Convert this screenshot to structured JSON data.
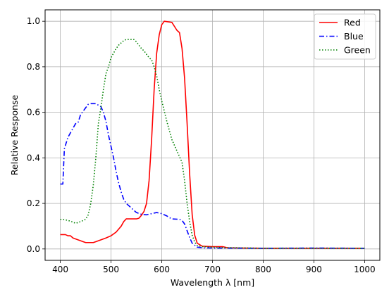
{
  "chart_data": {
    "type": "line",
    "title": "",
    "xlabel": "Wavelength λ [nm]",
    "ylabel": "Relative Response",
    "xlim": [
      370,
      1030
    ],
    "ylim": [
      -0.05,
      1.05
    ],
    "xticks": [
      400,
      500,
      600,
      700,
      800,
      900,
      1000
    ],
    "yticks": [
      0.0,
      0.2,
      0.4,
      0.6,
      0.8,
      1.0
    ],
    "xtick_labels": [
      "400",
      "500",
      "600",
      "700",
      "800",
      "900",
      "1000"
    ],
    "ytick_labels": [
      "0.0",
      "0.2",
      "0.4",
      "0.6",
      "0.8",
      "1.0"
    ],
    "grid": true,
    "legend_position": "top-right",
    "series": [
      {
        "name": "Red",
        "color": "#ff0000",
        "dash": "solid",
        "points": [
          [
            400,
            0.063
          ],
          [
            410,
            0.063
          ],
          [
            415,
            0.058
          ],
          [
            420,
            0.058
          ],
          [
            425,
            0.048
          ],
          [
            435,
            0.04
          ],
          [
            445,
            0.032
          ],
          [
            450,
            0.028
          ],
          [
            465,
            0.028
          ],
          [
            470,
            0.032
          ],
          [
            480,
            0.04
          ],
          [
            490,
            0.048
          ],
          [
            500,
            0.058
          ],
          [
            510,
            0.074
          ],
          [
            520,
            0.1
          ],
          [
            525,
            0.12
          ],
          [
            530,
            0.132
          ],
          [
            550,
            0.132
          ],
          [
            555,
            0.135
          ],
          [
            560,
            0.148
          ],
          [
            565,
            0.165
          ],
          [
            570,
            0.2
          ],
          [
            575,
            0.3
          ],
          [
            580,
            0.48
          ],
          [
            585,
            0.7
          ],
          [
            590,
            0.86
          ],
          [
            595,
            0.94
          ],
          [
            600,
            0.985
          ],
          [
            605,
            1.0
          ],
          [
            620,
            0.995
          ],
          [
            630,
            0.96
          ],
          [
            635,
            0.95
          ],
          [
            640,
            0.88
          ],
          [
            645,
            0.75
          ],
          [
            650,
            0.55
          ],
          [
            655,
            0.33
          ],
          [
            660,
            0.15
          ],
          [
            665,
            0.06
          ],
          [
            670,
            0.025
          ],
          [
            680,
            0.012
          ],
          [
            700,
            0.01
          ],
          [
            720,
            0.01
          ],
          [
            730,
            0.005
          ],
          [
            760,
            0.004
          ],
          [
            800,
            0.003
          ],
          [
            900,
            0.003
          ],
          [
            1000,
            0.003
          ]
        ]
      },
      {
        "name": "Blue",
        "color": "#0000ff",
        "dash": "dashdot",
        "points": [
          [
            400,
            0.285
          ],
          [
            405,
            0.285
          ],
          [
            408,
            0.44
          ],
          [
            415,
            0.49
          ],
          [
            420,
            0.51
          ],
          [
            425,
            0.53
          ],
          [
            430,
            0.55
          ],
          [
            435,
            0.555
          ],
          [
            440,
            0.59
          ],
          [
            450,
            0.62
          ],
          [
            455,
            0.635
          ],
          [
            460,
            0.638
          ],
          [
            470,
            0.638
          ],
          [
            480,
            0.625
          ],
          [
            485,
            0.6
          ],
          [
            490,
            0.56
          ],
          [
            495,
            0.5
          ],
          [
            500,
            0.45
          ],
          [
            505,
            0.4
          ],
          [
            510,
            0.34
          ],
          [
            515,
            0.29
          ],
          [
            520,
            0.25
          ],
          [
            525,
            0.218
          ],
          [
            530,
            0.2
          ],
          [
            540,
            0.18
          ],
          [
            550,
            0.16
          ],
          [
            560,
            0.152
          ],
          [
            570,
            0.15
          ],
          [
            580,
            0.155
          ],
          [
            590,
            0.16
          ],
          [
            600,
            0.155
          ],
          [
            610,
            0.145
          ],
          [
            615,
            0.138
          ],
          [
            620,
            0.132
          ],
          [
            635,
            0.13
          ],
          [
            640,
            0.125
          ],
          [
            645,
            0.11
          ],
          [
            650,
            0.08
          ],
          [
            655,
            0.05
          ],
          [
            660,
            0.025
          ],
          [
            670,
            0.008
          ],
          [
            680,
            0.005
          ],
          [
            700,
            0.004
          ],
          [
            800,
            0.003
          ],
          [
            900,
            0.004
          ],
          [
            1000,
            0.003
          ]
        ]
      },
      {
        "name": "Green",
        "color": "#008000",
        "dash": "dotted",
        "points": [
          [
            400,
            0.13
          ],
          [
            410,
            0.128
          ],
          [
            420,
            0.122
          ],
          [
            430,
            0.113
          ],
          [
            435,
            0.116
          ],
          [
            440,
            0.12
          ],
          [
            445,
            0.125
          ],
          [
            450,
            0.13
          ],
          [
            455,
            0.15
          ],
          [
            460,
            0.2
          ],
          [
            465,
            0.28
          ],
          [
            470,
            0.4
          ],
          [
            475,
            0.55
          ],
          [
            480,
            0.62
          ],
          [
            485,
            0.7
          ],
          [
            490,
            0.77
          ],
          [
            495,
            0.8
          ],
          [
            500,
            0.84
          ],
          [
            505,
            0.86
          ],
          [
            510,
            0.88
          ],
          [
            515,
            0.895
          ],
          [
            520,
            0.905
          ],
          [
            525,
            0.915
          ],
          [
            530,
            0.92
          ],
          [
            545,
            0.92
          ],
          [
            550,
            0.91
          ],
          [
            560,
            0.88
          ],
          [
            565,
            0.87
          ],
          [
            570,
            0.855
          ],
          [
            575,
            0.84
          ],
          [
            580,
            0.83
          ],
          [
            585,
            0.8
          ],
          [
            590,
            0.76
          ],
          [
            595,
            0.7
          ],
          [
            600,
            0.65
          ],
          [
            610,
            0.56
          ],
          [
            620,
            0.48
          ],
          [
            630,
            0.43
          ],
          [
            640,
            0.38
          ],
          [
            645,
            0.3
          ],
          [
            650,
            0.2
          ],
          [
            655,
            0.12
          ],
          [
            660,
            0.06
          ],
          [
            665,
            0.03
          ],
          [
            670,
            0.015
          ],
          [
            680,
            0.01
          ],
          [
            700,
            0.008
          ],
          [
            720,
            0.006
          ],
          [
            800,
            0.003
          ],
          [
            900,
            0.003
          ],
          [
            1000,
            0.003
          ]
        ]
      }
    ]
  }
}
